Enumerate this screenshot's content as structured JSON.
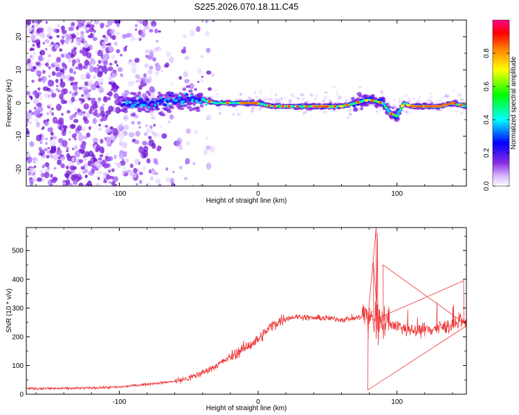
{
  "title": "S225.2026.070.18.11.C45",
  "chart_data": [
    {
      "type": "heatmap",
      "xlabel": "Height of straight line (km)",
      "ylabel": "Frequency (Hz)",
      "xlim": [
        -167,
        150
      ],
      "ylim": [
        -25,
        25
      ],
      "xticks": [
        -100,
        0,
        100
      ],
      "yticks": [
        -20,
        -10,
        0,
        10,
        20
      ],
      "description_series": {
        "name": "ridge frequency (Hz)",
        "x": [
          -100,
          -80,
          -60,
          -40,
          -30,
          -20,
          -10,
          0,
          10,
          20,
          40,
          60,
          70,
          80,
          90,
          95,
          100,
          105,
          110,
          120,
          130,
          140,
          150
        ],
        "values": [
          0,
          0,
          1,
          1,
          0,
          0,
          0,
          0,
          -1,
          -1,
          -1,
          -1,
          0,
          1,
          0,
          -3,
          -4,
          0,
          -1,
          -1,
          -1,
          0,
          -1
        ]
      },
      "colorbar": {
        "label": "Normalized spectral amplitude",
        "range": [
          0.0,
          1.0
        ],
        "ticks": [
          0.0,
          0.2,
          0.4,
          0.6,
          0.8
        ],
        "tick_labels": [
          "0.0",
          "0.2",
          "0.4",
          "0.6",
          "0.8"
        ],
        "colors": [
          "#ffffff",
          "#8a2be2",
          "#0000ff",
          "#00ffff",
          "#00ff00",
          "#ffff00",
          "#ff8800",
          "#ff0000",
          "#ff0088"
        ]
      }
    },
    {
      "type": "line",
      "xlabel": "Height of straight line (km)",
      "ylabel": "SNR (10 * v/v)",
      "xlim": [
        -167,
        150
      ],
      "ylim": [
        0,
        580
      ],
      "xticks": [
        -100,
        0,
        100
      ],
      "yticks": [
        0,
        100,
        200,
        300,
        400,
        500
      ],
      "series": [
        {
          "name": "SNR",
          "color": "#ee3333",
          "x": [
            -167,
            -140,
            -120,
            -100,
            -80,
            -60,
            -50,
            -40,
            -30,
            -20,
            -10,
            0,
            10,
            20,
            30,
            40,
            50,
            60,
            70,
            75,
            78,
            80,
            85,
            88,
            90,
            95,
            100,
            110,
            120,
            130,
            140,
            150
          ],
          "values": [
            20,
            20,
            22,
            25,
            35,
            45,
            55,
            75,
            100,
            130,
            160,
            190,
            240,
            265,
            270,
            265,
            265,
            260,
            265,
            270,
            280,
            270,
            250,
            260,
            255,
            245,
            240,
            220,
            225,
            230,
            240,
            250
          ]
        }
      ]
    }
  ]
}
